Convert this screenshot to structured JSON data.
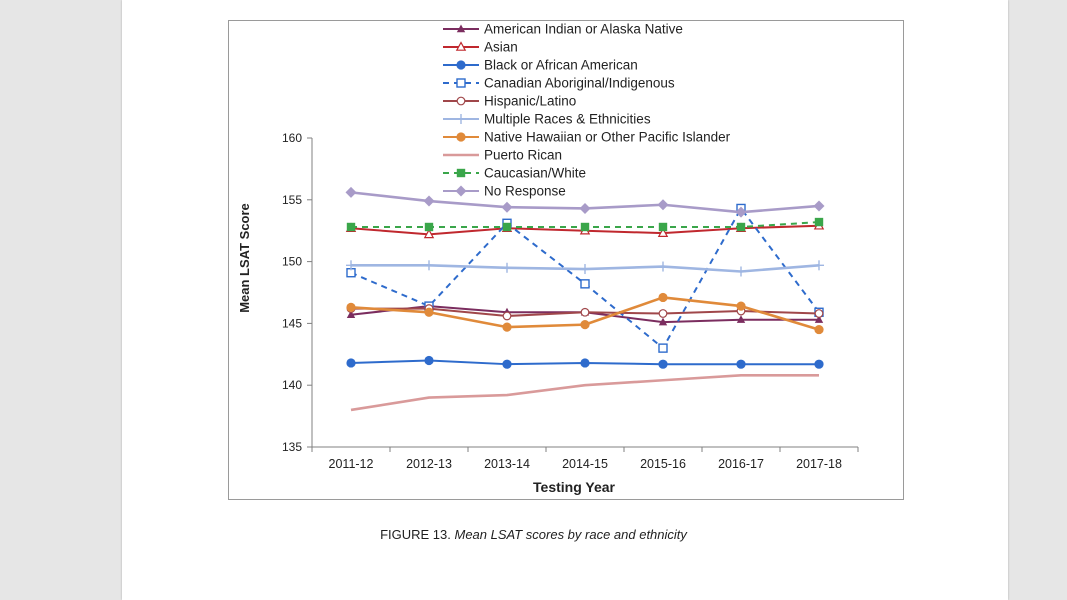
{
  "chart_data": {
    "type": "line",
    "title": "",
    "xlabel": "Testing Year",
    "ylabel": "Mean LSAT Score",
    "ylim": [
      135,
      160
    ],
    "yticks": [
      135,
      140,
      145,
      150,
      155,
      160
    ],
    "categories": [
      "2011-12",
      "2012-13",
      "2013-14",
      "2014-15",
      "2015-16",
      "2016-17",
      "2017-18"
    ],
    "grid": false,
    "legend_placement": "top-center",
    "series": [
      {
        "name": "American Indian or Alaska Native",
        "color": "#7b2d5f",
        "marker": "triangle",
        "values": [
          145.7,
          146.4,
          145.9,
          145.9,
          145.1,
          145.3,
          145.3
        ]
      },
      {
        "name": "Asian",
        "color": "#c0282e",
        "marker": "triangle-open",
        "values": [
          152.7,
          152.2,
          152.7,
          152.5,
          152.3,
          152.7,
          152.9
        ]
      },
      {
        "name": "Black or African American",
        "color": "#2e6bcc",
        "marker": "circle",
        "values": [
          141.8,
          142.0,
          141.7,
          141.8,
          141.7,
          141.7,
          141.7
        ]
      },
      {
        "name": "Canadian Aboriginal/Indigenous",
        "color": "#2e6bcc",
        "marker": "square-open",
        "dashed": true,
        "values": [
          149.1,
          146.4,
          153.1,
          148.2,
          143.0,
          154.3,
          145.9
        ]
      },
      {
        "name": "Hispanic/Latino",
        "color": "#a0474a",
        "marker": "circle-open",
        "values": [
          146.2,
          146.2,
          145.6,
          145.9,
          145.8,
          146.0,
          145.8
        ]
      },
      {
        "name": "Multiple Races & Ethnicities",
        "color": "#9fb6e2",
        "marker": "plus",
        "values": [
          149.7,
          149.7,
          149.5,
          149.4,
          149.6,
          149.2,
          149.7
        ]
      },
      {
        "name": "Native Hawaiian or Other Pacific Islander",
        "color": "#e08a3a",
        "marker": "circle",
        "values": [
          146.3,
          145.9,
          144.7,
          144.9,
          147.1,
          146.4,
          144.5
        ]
      },
      {
        "name": "Puerto Rican",
        "color": "#d99a9a",
        "marker": "none",
        "values": [
          138.0,
          139.0,
          139.2,
          140.0,
          140.4,
          140.8,
          140.8
        ]
      },
      {
        "name": "Caucasian/White",
        "color": "#3aa64a",
        "marker": "square",
        "dashed": true,
        "values": [
          152.8,
          152.8,
          152.8,
          152.8,
          152.8,
          152.8,
          153.2
        ]
      },
      {
        "name": "No Response",
        "color": "#a89bc8",
        "marker": "diamond",
        "values": [
          155.6,
          154.9,
          154.4,
          154.3,
          154.6,
          154.0,
          154.5
        ]
      }
    ]
  },
  "caption": {
    "lead": "FIGURE 13.",
    "text": "Mean LSAT scores by race and ethnicity"
  }
}
